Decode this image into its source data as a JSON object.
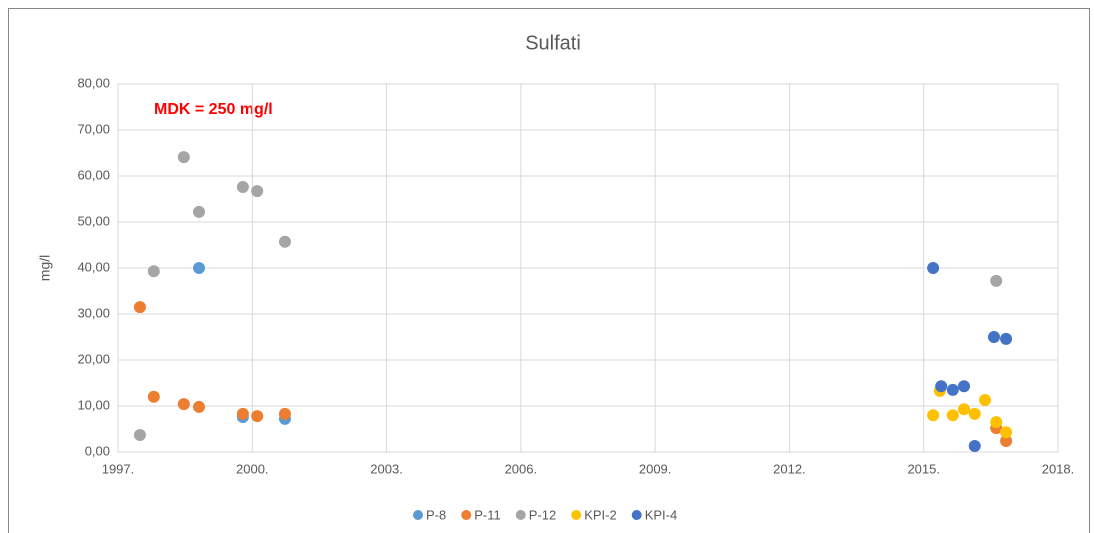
{
  "chart_data": {
    "type": "scatter",
    "title": "Sulfati",
    "y_label": "mg/l",
    "annotation": "MDK = 250 mg/l",
    "xlim": [
      1997,
      2018
    ],
    "xticks": [
      {
        "value": 1997,
        "label": "1997."
      },
      {
        "value": 2000,
        "label": "2000."
      },
      {
        "value": 2003,
        "label": "2003."
      },
      {
        "value": 2006,
        "label": "2006."
      },
      {
        "value": 2009,
        "label": "2009."
      },
      {
        "value": 2012,
        "label": "2012."
      },
      {
        "value": 2015,
        "label": "2015."
      },
      {
        "value": 2018,
        "label": "2018."
      }
    ],
    "ylim": [
      0,
      80
    ],
    "yticks": [
      {
        "value": 0,
        "label": "0,00"
      },
      {
        "value": 10,
        "label": "10,00"
      },
      {
        "value": 20,
        "label": "20,00"
      },
      {
        "value": 30,
        "label": "30,00"
      },
      {
        "value": 40,
        "label": "40,00"
      },
      {
        "value": 50,
        "label": "50,00"
      },
      {
        "value": 60,
        "label": "60,00"
      },
      {
        "value": 70,
        "label": "70,00"
      },
      {
        "value": 80,
        "label": "80,00"
      }
    ],
    "grid": true,
    "legend": "bottom",
    "series": [
      {
        "name": "P-8",
        "color": "#5b9bd5",
        "x": [
          1998.81,
          1999.79,
          2000.73
        ],
        "values": [
          40.0,
          7.6,
          7.2
        ]
      },
      {
        "name": "P-11",
        "color": "#ed7d31",
        "x": [
          1997.49,
          1997.8,
          1998.47,
          1998.81,
          1999.79,
          2000.11,
          2000.73,
          2016.62,
          2016.84
        ],
        "values": [
          31.5,
          12.0,
          10.4,
          9.8,
          8.3,
          7.8,
          8.3,
          5.2,
          2.4
        ]
      },
      {
        "name": "P-12",
        "color": "#a5a5a5",
        "x": [
          1997.49,
          1997.8,
          1998.47,
          1998.81,
          1999.79,
          2000.11,
          2000.73,
          2016.62
        ],
        "values": [
          3.7,
          39.3,
          64.1,
          52.2,
          57.6,
          56.7,
          45.7,
          37.2
        ]
      },
      {
        "name": "KPI-2",
        "color": "#ffc000",
        "x": [
          2015.21,
          2015.36,
          2015.65,
          2015.9,
          2016.14,
          2016.37,
          2016.62,
          2016.84
        ],
        "values": [
          8.0,
          13.3,
          8.0,
          9.3,
          8.3,
          11.3,
          6.5,
          4.3
        ]
      },
      {
        "name": "KPI-4",
        "color": "#4472c4",
        "x": [
          2015.21,
          2015.39,
          2015.65,
          2015.9,
          2016.14,
          2016.57,
          2016.84
        ],
        "values": [
          40.0,
          14.3,
          13.5,
          14.3,
          1.3,
          25.0,
          24.6
        ]
      }
    ]
  }
}
